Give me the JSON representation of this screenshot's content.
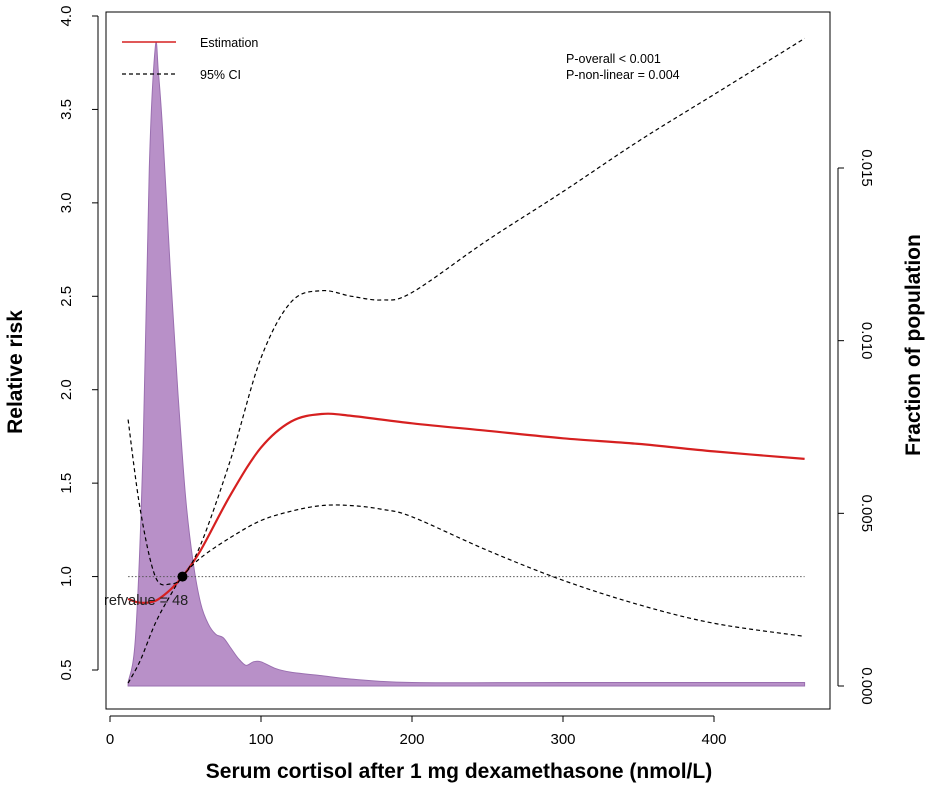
{
  "chart_data": {
    "type": "line",
    "xlabel": "Serum cortisol after 1 mg dexamethasone (nmol/L)",
    "ylabel": "Relative risk",
    "y2label": "Fraction of population",
    "xlim": [
      0,
      460
    ],
    "ylim": [
      0.42,
      4.0
    ],
    "y2lim": [
      0,
      0.0186
    ],
    "x_ticks": [
      0,
      100,
      200,
      300,
      400
    ],
    "y_ticks": [
      "0.5",
      "1.0",
      "1.5",
      "2.0",
      "2.5",
      "3.0",
      "3.5",
      "4.0"
    ],
    "y2_ticks": [
      "0.000",
      "0.005",
      "0.010",
      "0.015"
    ],
    "legend": [
      {
        "label": "Estimation",
        "color": "#d62020",
        "style": "solid"
      },
      {
        "label": "95% CI",
        "color": "#000000",
        "style": "dashed"
      }
    ],
    "legend_position": "top-left",
    "annotations": [
      "P-overall < 0.001",
      "P-non-linear = 0.004"
    ],
    "reference": {
      "x": 48,
      "y": 1.0,
      "label": "refvalue = 48"
    },
    "series": [
      {
        "name": "Estimation",
        "color": "#d62020",
        "x": [
          12,
          20,
          30,
          40,
          48,
          60,
          80,
          100,
          120,
          140,
          160,
          200,
          250,
          300,
          350,
          400,
          460
        ],
        "y": [
          0.88,
          0.86,
          0.87,
          0.93,
          1.0,
          1.14,
          1.44,
          1.69,
          1.83,
          1.87,
          1.86,
          1.82,
          1.78,
          1.74,
          1.71,
          1.67,
          1.63
        ]
      },
      {
        "name": "95% CI",
        "color": "#000000",
        "x": [
          12,
          20,
          30,
          40,
          48,
          60,
          80,
          100,
          120,
          140,
          160,
          180,
          200,
          250,
          300,
          350,
          400,
          460
        ],
        "y": [
          1.84,
          1.36,
          1.0,
          0.96,
          1.0,
          1.17,
          1.63,
          2.17,
          2.47,
          2.53,
          2.5,
          2.48,
          2.52,
          2.8,
          3.06,
          3.33,
          3.58,
          3.88
        ]
      },
      {
        "name": "95% CI",
        "color": "#000000",
        "x": [
          12,
          20,
          30,
          40,
          48,
          60,
          80,
          100,
          120,
          140,
          160,
          180,
          200,
          250,
          300,
          350,
          400,
          460
        ],
        "y": [
          0.43,
          0.55,
          0.75,
          0.9,
          1.0,
          1.1,
          1.21,
          1.3,
          1.35,
          1.38,
          1.38,
          1.36,
          1.32,
          1.14,
          0.98,
          0.85,
          0.75,
          0.68
        ]
      }
    ],
    "density": {
      "color": "#b890c8",
      "x": [
        12,
        17,
        22,
        26,
        30,
        32,
        35,
        40,
        45,
        50,
        55,
        60,
        65,
        70,
        75,
        80,
        85,
        90,
        95,
        100,
        110,
        120,
        140,
        160,
        200,
        300,
        460
      ],
      "y": [
        0.0001,
        0.0015,
        0.007,
        0.015,
        0.0185,
        0.0178,
        0.016,
        0.012,
        0.0085,
        0.0055,
        0.0036,
        0.0024,
        0.0018,
        0.0015,
        0.0014,
        0.0011,
        0.0008,
        0.0006,
        0.0007,
        0.0007,
        0.0005,
        0.0004,
        0.0003,
        0.0002,
        0.0001,
        0.0001,
        0.0001
      ]
    }
  }
}
